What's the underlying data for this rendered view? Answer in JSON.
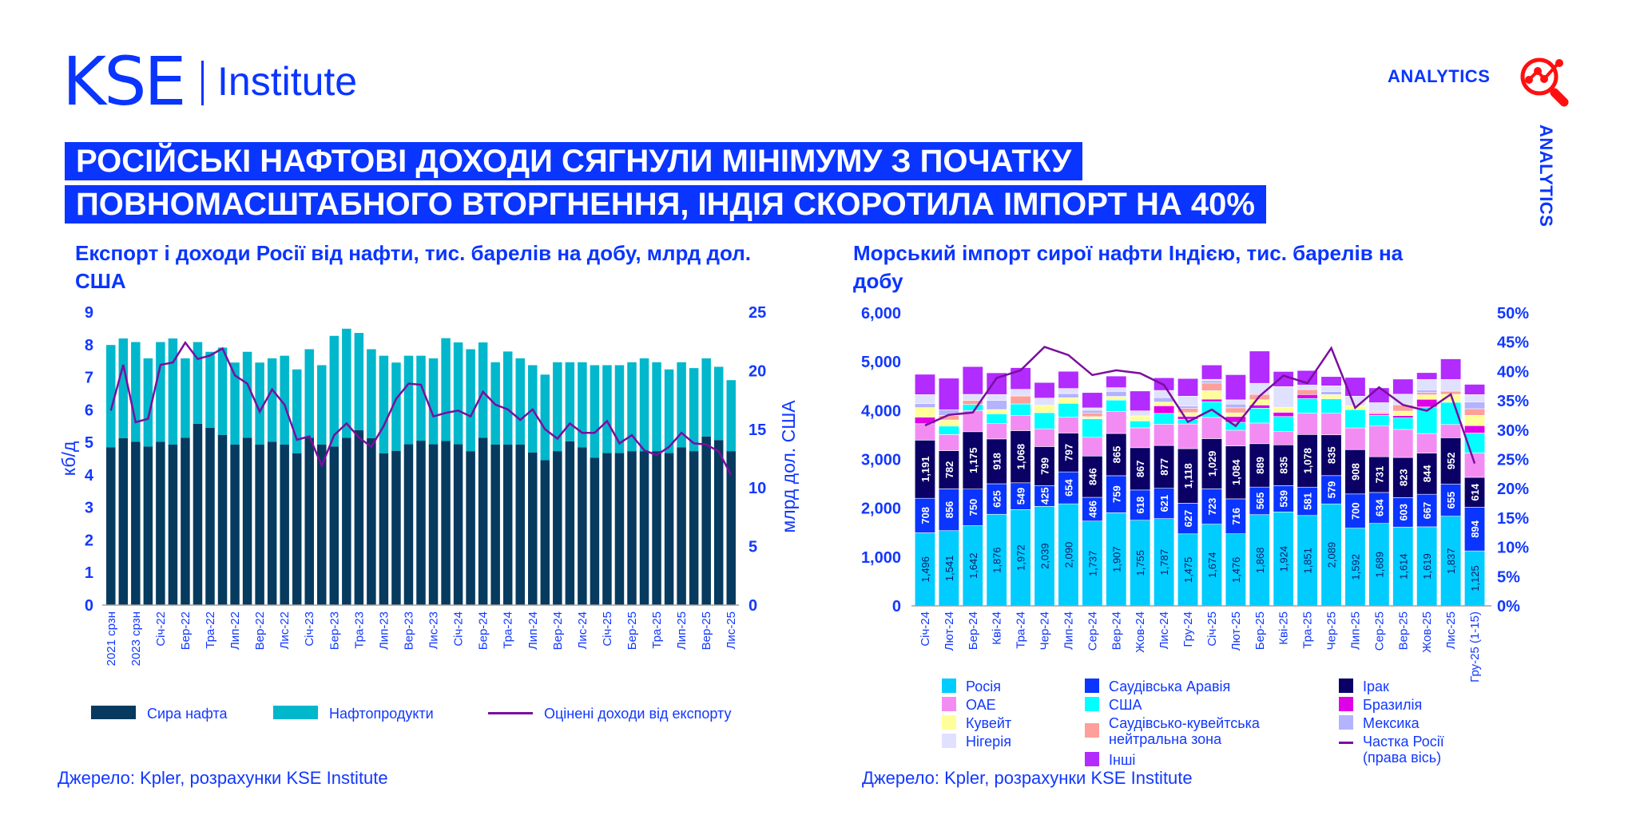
{
  "header": {
    "logo_text": "KSE",
    "institute": "Institute",
    "analytics": "ANALYTICS",
    "analytics_vertical": "ANALYTICS",
    "icon": "magnifier-chart-icon"
  },
  "title_lines": [
    "РОСІЙСЬКІ НАФТОВІ ДОХОДИ СЯГНУЛИ МІНІМУМУ З ПОЧАТКУ",
    "ПОВНОМАСШТАБНОГО ВТОРГНЕННЯ, ІНДІЯ СКОРОТИЛА ІМПОРТ НА 40%"
  ],
  "colors": {
    "brand_blue": "#0a35ff",
    "text_blue": "#1238ff",
    "icon_red": "#ff1010"
  },
  "chart_data": [
    {
      "type": "bar",
      "stacked": true,
      "title": "Експорт і доходи Росії від нафти, тис. барелів на добу, млрд дол. США",
      "ylabel": "кб/д",
      "y2label": "млрд дол. США",
      "ylim": [
        0,
        9
      ],
      "y2lim": [
        0,
        25
      ],
      "yticks": [
        "0",
        "1",
        "2",
        "3",
        "4",
        "5",
        "6",
        "7",
        "8",
        "9"
      ],
      "y2ticks": [
        "0",
        "5",
        "10",
        "15",
        "20",
        "25"
      ],
      "grid": false,
      "legend_position": "bottom",
      "categories": [
        "2021 срзн",
        "",
        "2023 срзн",
        "",
        "Січ-22",
        "",
        "Бер-22",
        "",
        "Тра-22",
        "",
        "Лип-22",
        "",
        "Вер-22",
        "",
        "Лис-22",
        "",
        "Січ-23",
        "",
        "Бер-23",
        "",
        "Тра-23",
        "",
        "Лип-23",
        "",
        "Вер-23",
        "",
        "Лис-23",
        "",
        "Січ-24",
        "",
        "Бер-24",
        "",
        "Тра-24",
        "",
        "Лип-24",
        "",
        "Вер-24",
        "",
        "Лис-24",
        "",
        "Січ-25",
        "",
        "Бер-25",
        "",
        "Тра-25",
        "",
        "Лип-25",
        "",
        "Вер-25",
        "",
        "Лис-25"
      ],
      "series": [
        {
          "name": "Сира нафта",
          "kind": "bar",
          "color": "#063a5e",
          "values": [
            4.85,
            5.13,
            5.02,
            4.87,
            5.02,
            4.93,
            5.14,
            5.57,
            5.45,
            5.23,
            4.93,
            5.14,
            4.93,
            5.02,
            4.93,
            4.66,
            5.14,
            4.93,
            4.87,
            5.14,
            5.37,
            5.13,
            4.66,
            4.74,
            4.94,
            5.05,
            4.94,
            5.04,
            4.94,
            4.73,
            5.14,
            4.93,
            4.93,
            4.93,
            4.69,
            4.45,
            4.73,
            5.03,
            4.85,
            4.53,
            4.67,
            4.67,
            4.73,
            4.73,
            4.73,
            4.67,
            4.85,
            4.73,
            5.18,
            5.07,
            4.73
          ]
        },
        {
          "name": "Нафтопродукти",
          "kind": "bar",
          "color": "#00b7cc",
          "values": [
            3.14,
            3.06,
            3.06,
            2.71,
            3.06,
            3.26,
            2.44,
            2.51,
            2.33,
            2.68,
            2.52,
            2.64,
            2.52,
            2.56,
            2.73,
            2.58,
            2.72,
            2.44,
            3.4,
            3.35,
            2.99,
            2.73,
            3.0,
            2.71,
            2.72,
            2.61,
            2.64,
            3.16,
            3.13,
            3.13,
            2.93,
            2.53,
            2.86,
            2.65,
            2.68,
            2.63,
            2.73,
            2.43,
            2.61,
            2.84,
            2.7,
            2.7,
            2.73,
            2.85,
            2.73,
            2.57,
            2.61,
            2.55,
            2.4,
            2.25,
            2.18
          ]
        },
        {
          "name": "Оцінені доходи від експорту",
          "kind": "line",
          "axis": "right",
          "color": "#7b0e9e",
          "values": [
            16.6,
            20.5,
            15.6,
            15.9,
            20.5,
            20.7,
            22.4,
            21.0,
            21.3,
            21.9,
            19.6,
            18.9,
            16.5,
            18.4,
            17.1,
            14.1,
            14.4,
            11.9,
            14.5,
            15.5,
            14.3,
            13.5,
            15.3,
            17.6,
            18.9,
            18.8,
            16.1,
            16.4,
            16.6,
            16.1,
            18.2,
            17.1,
            16.7,
            15.8,
            16.7,
            15.0,
            14.2,
            15.5,
            14.7,
            14.7,
            15.7,
            13.8,
            14.5,
            13.2,
            12.8,
            13.5,
            14.7,
            13.8,
            13.7,
            13.1,
            11.1
          ]
        }
      ],
      "source": "Джерело: Kpler, розрахунки KSE Institute"
    },
    {
      "type": "bar",
      "stacked": true,
      "title": "Морський імпорт сирої нафти Індією, тис. барелів на добу",
      "ylim": [
        0,
        6000
      ],
      "y2lim": [
        0,
        50
      ],
      "yticks": [
        "0",
        "1,000",
        "2,000",
        "3,000",
        "4,000",
        "5,000",
        "6,000"
      ],
      "y2ticks": [
        "0%",
        "5%",
        "10%",
        "15%",
        "20%",
        "25%",
        "30%",
        "35%",
        "40%",
        "45%",
        "50%"
      ],
      "grid": false,
      "legend_position": "bottom",
      "categories": [
        "Січ-24",
        "Лют-24",
        "Бер-24",
        "Кві-24",
        "Тра-24",
        "Чер-24",
        "Лип-24",
        "Сер-24",
        "Вер-24",
        "Жов-24",
        "Лис-24",
        "Гру-24",
        "Січ-25",
        "Лют-25",
        "Бер-25",
        "Кві-25",
        "Тра-25",
        "Чер-25",
        "Лип-25",
        "Сер-25",
        "Вер-25",
        "Жов-25",
        "Лис-25",
        "Гру-25 (1-15)"
      ],
      "series": [
        {
          "name": "Росія",
          "color": "#00ccff",
          "labeled": true,
          "label_color": "#0a1a66",
          "values": [
            1496,
            1541,
            1642,
            1876,
            1972,
            2039,
            2090,
            1737,
            1907,
            1755,
            1787,
            1475,
            1674,
            1476,
            1868,
            1924,
            1851,
            2089,
            1592,
            1689,
            1614,
            1619,
            1837,
            1125
          ]
        },
        {
          "name": "Саудівська Аравія",
          "color": "#0a35ff",
          "labeled": true,
          "label_color": "#ffffff",
          "values": [
            708,
            856,
            750,
            625,
            549,
            425,
            654,
            486,
            759,
            618,
            621,
            627,
            723,
            716,
            565,
            539,
            581,
            579,
            700,
            634,
            603,
            667,
            655,
            894
          ]
        },
        {
          "name": "Ірак",
          "color": "#0a0066",
          "labeled": true,
          "label_color": "#ffffff",
          "values": [
            1191,
            782,
            1175,
            918,
            1068,
            799,
            797,
            846,
            865,
            867,
            877,
            1118,
            1029,
            1084,
            889,
            835,
            1078,
            835,
            908,
            731,
            823,
            844,
            952,
            614
          ]
        },
        {
          "name": "ОАЕ",
          "color": "#f28cf2",
          "values": [
            336,
            330,
            434,
            314,
            314,
            363,
            325,
            385,
            450,
            407,
            434,
            504,
            434,
            320,
            423,
            271,
            439,
            444,
            444,
            629,
            575,
            401,
            271,
            499
          ]
        },
        {
          "name": "США",
          "color": "#00ffff",
          "values": [
            0,
            173,
            125,
            200,
            233,
            331,
            282,
            379,
            233,
            141,
            222,
            98,
            320,
            163,
            304,
            309,
            298,
            293,
            374,
            217,
            233,
            542,
            455,
            407
          ]
        },
        {
          "name": "Бразилія",
          "color": "#e000e8",
          "values": [
            135,
            0,
            0,
            0,
            0,
            0,
            0,
            0,
            0,
            0,
            157,
            60,
            54,
            119,
            65,
            87,
            81,
            0,
            0,
            33,
            49,
            157,
            0,
            152
          ]
        },
        {
          "name": "Кувейт",
          "color": "#ffff99",
          "values": [
            195,
            125,
            0,
            87,
            0,
            152,
            114,
            43,
            76,
            103,
            76,
            76,
            173,
            76,
            108,
            103,
            0,
            87,
            81,
            0,
            92,
            92,
            163,
            211
          ]
        },
        {
          "name": "Саудівсько-кувейтська нейтральна зона",
          "color": "#ff9f9a",
          "values": [
            0,
            92,
            81,
            0,
            163,
            0,
            0,
            76,
            0,
            0,
            0,
            87,
            157,
            103,
            108,
            0,
            103,
            0,
            0,
            33,
            130,
            49,
            65,
            136
          ]
        },
        {
          "name": "Мексика",
          "color": "#b3b3ff",
          "values": [
            81,
            119,
            0,
            190,
            0,
            0,
            87,
            54,
            103,
            0,
            92,
            49,
            49,
            76,
            0,
            0,
            0,
            65,
            0,
            0,
            0,
            54,
            0,
            136
          ]
        },
        {
          "name": "Нігерія",
          "color": "#e0e0ff",
          "values": [
            184,
            0,
            125,
            119,
            136,
            146,
            103,
            49,
            76,
            103,
            146,
            200,
            27,
            87,
            228,
            423,
            92,
            114,
            195,
            195,
            217,
            211,
            238,
            152
          ]
        },
        {
          "name": "Інші",
          "color": "#b22bff",
          "values": [
            417,
            645,
            569,
            444,
            444,
            320,
            352,
            314,
            238,
            407,
            260,
            363,
            293,
            515,
            661,
            309,
            298,
            190,
            385,
            304,
            309,
            141,
            423,
            211
          ]
        },
        {
          "name": "Частка Росії (права вісь)",
          "kind": "line",
          "axis": "right",
          "color": "#7b0e9e",
          "unit": "%",
          "values": [
            30.8,
            32.6,
            33.0,
            38.9,
            40.2,
            44.2,
            42.8,
            39.4,
            40.2,
            39.7,
            37.7,
            31.4,
            33.5,
            30.7,
            35.8,
            39.3,
            38.0,
            44.0,
            33.8,
            37.3,
            34.3,
            33.3,
            36.1,
            24.3
          ]
        }
      ],
      "legend_order": [
        0,
        1,
        2,
        3,
        4,
        5,
        6,
        7,
        8,
        9,
        10,
        11
      ],
      "source": "Джерело: Kpler, розрахунки KSE Institute"
    }
  ]
}
